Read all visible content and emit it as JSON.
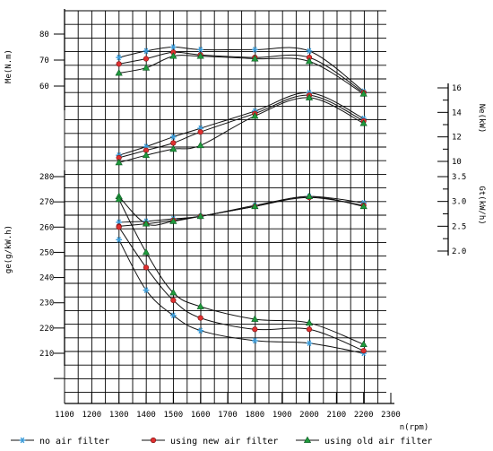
{
  "chart_data": {
    "type": "line",
    "title": "",
    "x_axis": {
      "label": "n(rpm)",
      "range": [
        1100,
        2300
      ],
      "ticks": [
        "1100",
        "1200",
        "1300",
        "1400",
        "1500",
        "1600",
        "1700",
        "1800",
        "1900",
        "2000",
        "2100",
        "2200",
        "2300"
      ]
    },
    "y_axes": [
      {
        "key": "Me",
        "label": "Me(N.m)",
        "side": "left",
        "range": [
          50,
          85
        ],
        "ticks": [
          "60",
          "70",
          "80"
        ]
      },
      {
        "key": "Ne",
        "label": "Ne(kW)",
        "side": "right",
        "range": [
          9,
          17
        ],
        "ticks": [
          "10",
          "12",
          "14",
          "16"
        ]
      },
      {
        "key": "Gt",
        "label": "Gt(kW/h)",
        "side": "right",
        "range": [
          1.8,
          3.7
        ],
        "ticks": [
          "2.0",
          "2.5",
          "3.0",
          "3.5"
        ]
      },
      {
        "key": "ge",
        "label": "ge(g/kW.h)",
        "side": "left",
        "range": [
          200,
          285
        ],
        "ticks": [
          "210",
          "220",
          "230",
          "240",
          "250",
          "260",
          "270",
          "280"
        ]
      }
    ],
    "legend": {
      "placement": "bottom",
      "entries": [
        "no air filter",
        "using new air filter",
        "using old air filter"
      ]
    },
    "series": [
      {
        "name": "no air filter",
        "color": "#3a9bd8",
        "marker": "star",
        "Me": [
          [
            1300,
            71
          ],
          [
            1400,
            73.5
          ],
          [
            1500,
            75
          ],
          [
            1600,
            74
          ],
          [
            1800,
            74
          ],
          [
            2000,
            73.5
          ],
          [
            2200,
            58
          ]
        ],
        "Ne": [
          [
            1300,
            10.5
          ],
          [
            1400,
            11.2
          ],
          [
            1500,
            12
          ],
          [
            1600,
            12.7
          ],
          [
            1800,
            14.1
          ],
          [
            2000,
            15.6
          ],
          [
            2200,
            13.5
          ]
        ],
        "Gt": [
          [
            1300,
            2.58
          ],
          [
            1400,
            2.6
          ],
          [
            1500,
            2.65
          ],
          [
            1600,
            2.7
          ],
          [
            1800,
            2.92
          ],
          [
            2000,
            3.1
          ],
          [
            2200,
            2.97
          ]
        ],
        "ge": [
          [
            1300,
            255
          ],
          [
            1400,
            235
          ],
          [
            1500,
            225
          ],
          [
            1600,
            219
          ],
          [
            1800,
            215
          ],
          [
            2000,
            214
          ],
          [
            2200,
            210
          ]
        ]
      },
      {
        "name": "using new air filter",
        "color": "#e03030",
        "marker": "circle",
        "Me": [
          [
            1300,
            68.5
          ],
          [
            1400,
            70.5
          ],
          [
            1500,
            73
          ],
          [
            1600,
            72
          ],
          [
            1800,
            71
          ],
          [
            2000,
            71
          ],
          [
            2200,
            57.5
          ]
        ],
        "Ne": [
          [
            1300,
            10.3
          ],
          [
            1400,
            10.9
          ],
          [
            1500,
            11.5
          ],
          [
            1600,
            12.4
          ],
          [
            1800,
            13.9
          ],
          [
            2000,
            15.4
          ],
          [
            2200,
            13.3
          ]
        ],
        "Gt": [
          [
            1300,
            2.5
          ],
          [
            1400,
            2.55
          ],
          [
            1500,
            2.62
          ],
          [
            1600,
            2.7
          ],
          [
            1800,
            2.9
          ],
          [
            2000,
            3.08
          ],
          [
            2200,
            2.92
          ]
        ],
        "ge": [
          [
            1300,
            260
          ],
          [
            1400,
            244
          ],
          [
            1500,
            231
          ],
          [
            1600,
            224
          ],
          [
            1800,
            219.5
          ],
          [
            2000,
            219.5
          ],
          [
            2200,
            211
          ]
        ]
      },
      {
        "name": "using old air filter",
        "color": "#1f9a3c",
        "marker": "triangle",
        "Me": [
          [
            1300,
            65
          ],
          [
            1400,
            67
          ],
          [
            1500,
            71.5
          ],
          [
            1600,
            71.5
          ],
          [
            1800,
            70.5
          ],
          [
            2000,
            69.5
          ],
          [
            2200,
            57
          ]
        ],
        "Ne": [
          [
            1300,
            9.9
          ],
          [
            1400,
            10.5
          ],
          [
            1500,
            11
          ],
          [
            1600,
            11.3
          ],
          [
            1800,
            13.7
          ],
          [
            2000,
            15.2
          ],
          [
            2200,
            13.1
          ]
        ],
        "Gt": [
          [
            1300,
            3.1
          ],
          [
            1400,
            2.55
          ],
          [
            1500,
            2.6
          ],
          [
            1600,
            2.7
          ],
          [
            1800,
            2.9
          ],
          [
            2000,
            3.1
          ],
          [
            2200,
            2.9
          ]
        ],
        "ge": [
          [
            1300,
            271
          ],
          [
            1400,
            250
          ],
          [
            1500,
            234
          ],
          [
            1600,
            228.5
          ],
          [
            1800,
            223.5
          ],
          [
            2000,
            222
          ],
          [
            2200,
            213.5
          ]
        ]
      }
    ]
  }
}
